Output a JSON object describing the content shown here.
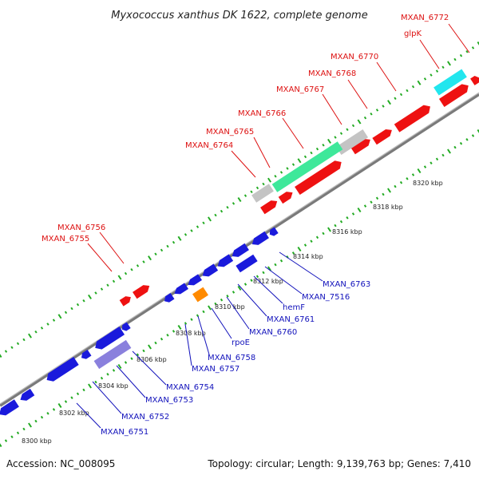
{
  "title": "Myxococcus xanthus DK 1622, complete genome",
  "footer": {
    "accession": "Accession: NC_008095",
    "summary": "Topology: circular; Length: 9,139,763 bp; Genes: 7,410"
  },
  "colors": {
    "forward_label": "#dd1111",
    "reverse_label": "#1111bb",
    "forward_gene": "#ee1111",
    "reverse_gene": "#1a1adc",
    "rRNA": "#3ee89a",
    "tRNA": "#22e6ee",
    "pseudo": "#c4c4c4",
    "misc": "#ff8a00",
    "other": "#8a80dd",
    "backbone": "#7a7a7a",
    "ticks": "#22aa22"
  },
  "scale": [
    {
      "label": "8300 kbp"
    },
    {
      "label": "8302 kbp"
    },
    {
      "label": "8304 kbp"
    },
    {
      "label": "8306 kbp"
    },
    {
      "label": "8308 kbp"
    },
    {
      "label": "8310 kbp"
    },
    {
      "label": "8312 kbp"
    },
    {
      "label": "8314 kbp"
    },
    {
      "label": "8316 kbp"
    },
    {
      "label": "8318 kbp"
    },
    {
      "label": "8320 kbp"
    }
  ],
  "forward_labels": [
    {
      "text": "MXAN_6755"
    },
    {
      "text": "MXAN_6756"
    },
    {
      "text": "MXAN_6764"
    },
    {
      "text": "MXAN_6765"
    },
    {
      "text": "MXAN_6766"
    },
    {
      "text": "MXAN_6767"
    },
    {
      "text": "MXAN_6768"
    },
    {
      "text": "MXAN_6770"
    },
    {
      "text": "glpK"
    },
    {
      "text": "MXAN_6772"
    }
  ],
  "reverse_labels": [
    {
      "text": "MXAN_6751"
    },
    {
      "text": "MXAN_6752"
    },
    {
      "text": "MXAN_6753"
    },
    {
      "text": "MXAN_6754"
    },
    {
      "text": "MXAN_6757"
    },
    {
      "text": "MXAN_6758"
    },
    {
      "text": "rpoE"
    },
    {
      "text": "MXAN_6760"
    },
    {
      "text": "MXAN_6761"
    },
    {
      "text": "hemF"
    },
    {
      "text": "MXAN_7516"
    },
    {
      "text": "MXAN_6763"
    }
  ]
}
